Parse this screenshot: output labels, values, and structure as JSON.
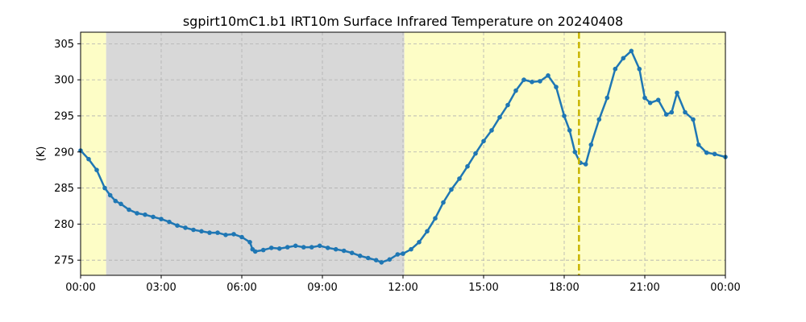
{
  "chart_data": {
    "type": "line",
    "title": "sgpirt10mC1.b1 IRT10m Surface Infrared Temperature on 20240408",
    "xlabel": "",
    "ylabel": "(K)",
    "x_unit": "hours",
    "xlim": [
      0,
      24
    ],
    "ylim": [
      272.9,
      306.6
    ],
    "xticks": [
      0,
      3,
      6,
      9,
      12,
      15,
      18,
      21,
      24
    ],
    "xtick_labels": [
      "00:00",
      "03:00",
      "06:00",
      "09:00",
      "12:00",
      "15:00",
      "18:00",
      "21:00",
      "00:00"
    ],
    "yticks": [
      275,
      280,
      285,
      290,
      295,
      300,
      305
    ],
    "ytick_labels": [
      "275",
      "280",
      "285",
      "290",
      "295",
      "300",
      "305"
    ],
    "grid": true,
    "colors": {
      "series": "#1f77b4",
      "daylight": "#fdfdc6",
      "night": "#d8d8d8",
      "marker_line": "#c8b400"
    },
    "shaded_regions": [
      {
        "kind": "daylight",
        "x": [
          0,
          0.95
        ]
      },
      {
        "kind": "night",
        "x": [
          0.95,
          12.05
        ]
      },
      {
        "kind": "daylight",
        "x": [
          12.05,
          24
        ]
      }
    ],
    "vertical_markers": [
      {
        "x": 18.55,
        "style": "dashed"
      }
    ],
    "series": [
      {
        "x": [
          0.0,
          0.3,
          0.6,
          0.9,
          1.1,
          1.3,
          1.5,
          1.8,
          2.1,
          2.4,
          2.7,
          3.0,
          3.3,
          3.6,
          3.9,
          4.2,
          4.5,
          4.8,
          5.1,
          5.4,
          5.7,
          6.0,
          6.3,
          6.4,
          6.5,
          6.8,
          7.1,
          7.4,
          7.7,
          8.0,
          8.3,
          8.6,
          8.9,
          9.2,
          9.5,
          9.8,
          10.1,
          10.4,
          10.7,
          11.0,
          11.2,
          11.5,
          11.8,
          12.0,
          12.3,
          12.6,
          12.9,
          13.2,
          13.5,
          13.8,
          14.1,
          14.4,
          14.7,
          15.0,
          15.3,
          15.6,
          15.9,
          16.2,
          16.5,
          16.8,
          17.1,
          17.4,
          17.7,
          18.0,
          18.2,
          18.4,
          18.6,
          18.8,
          19.0,
          19.3,
          19.6,
          19.9,
          20.2,
          20.5,
          20.8,
          21.0,
          21.2,
          21.5,
          21.8,
          22.0,
          22.2,
          22.5,
          22.8,
          23.0,
          23.3,
          23.6,
          24.0
        ],
        "y": [
          290.2,
          289.0,
          287.5,
          285.0,
          284.0,
          283.2,
          282.8,
          282.0,
          281.5,
          281.3,
          281.0,
          280.7,
          280.3,
          279.8,
          279.5,
          279.2,
          279.0,
          278.8,
          278.8,
          278.5,
          278.6,
          278.2,
          277.5,
          276.5,
          276.2,
          276.4,
          276.7,
          276.6,
          276.8,
          277.0,
          276.8,
          276.8,
          277.0,
          276.7,
          276.5,
          276.3,
          276.0,
          275.6,
          275.3,
          275.0,
          274.7,
          275.1,
          275.8,
          275.9,
          276.5,
          277.5,
          279.0,
          280.8,
          283.0,
          284.8,
          286.3,
          288.0,
          289.8,
          291.5,
          293.0,
          294.8,
          296.5,
          298.5,
          300.0,
          299.7,
          299.8,
          300.6,
          299.0,
          295.0,
          293.0,
          290.0,
          288.5,
          288.3,
          291.0,
          294.5,
          297.5,
          301.5,
          303.0,
          304.0,
          301.5,
          297.5,
          296.8,
          297.2,
          295.2,
          295.5,
          298.2,
          295.5,
          294.5,
          291.0,
          289.9,
          289.7,
          289.3
        ]
      }
    ]
  }
}
